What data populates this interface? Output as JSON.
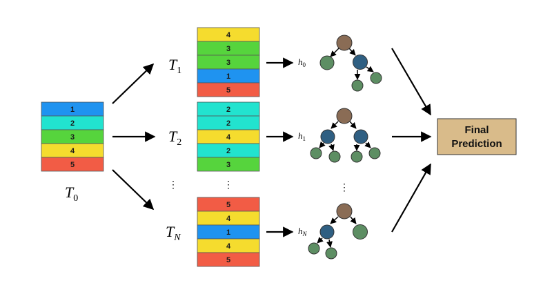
{
  "colors": {
    "1": "#1f93f0",
    "2": "#22e3cf",
    "3": "#56d43d",
    "4": "#f5dc2e",
    "5": "#f25c45",
    "root_node": "#8a6c55",
    "inner_node": "#2f5f82",
    "leaf_node": "#5d8e63",
    "final_box": "#d9bb8a"
  },
  "original": {
    "label_main": "T",
    "label_sub": "0",
    "cells": [
      1,
      2,
      3,
      4,
      5
    ]
  },
  "samples": [
    {
      "label_main": "T",
      "label_sub": "1",
      "cells": [
        4,
        3,
        3,
        1,
        5
      ],
      "h_main": "h",
      "h_sub": "0"
    },
    {
      "label_main": "T",
      "label_sub": "2",
      "cells": [
        2,
        2,
        4,
        2,
        3
      ],
      "h_main": "h",
      "h_sub": "1"
    },
    {
      "label_main": "T",
      "label_sub": "N",
      "cells": [
        5,
        4,
        1,
        4,
        5
      ],
      "h_main": "h",
      "h_sub": "N"
    }
  ],
  "ellipsis": "⋮",
  "final": {
    "line1": "Final",
    "line2": "Prediction"
  }
}
